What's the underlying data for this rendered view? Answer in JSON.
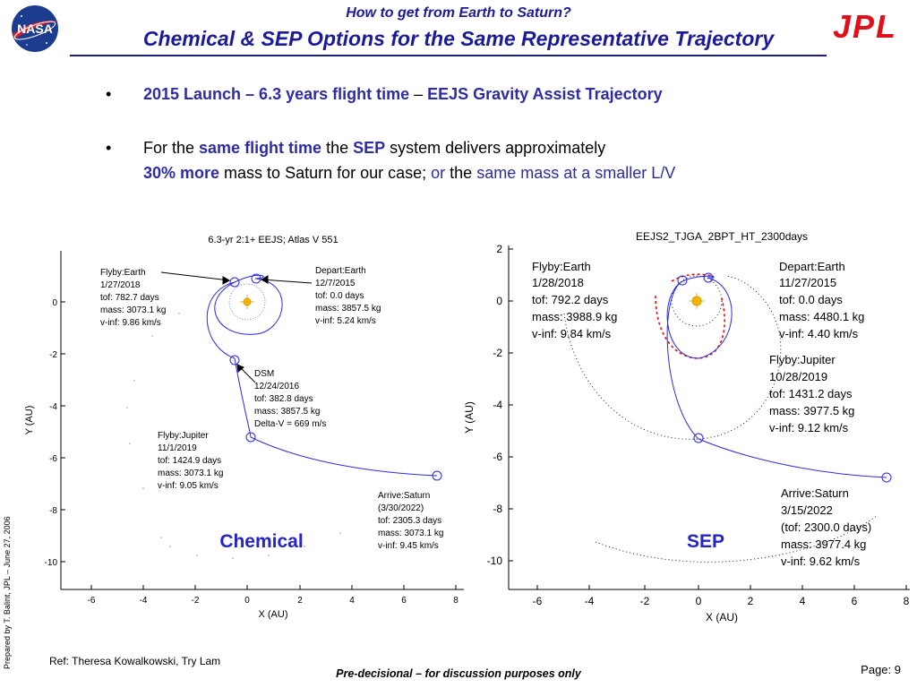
{
  "header": {
    "title_line1": "How to get from Earth to Saturn?",
    "title_line2": "Chemical & SEP Options for the Same Representative Trajectory",
    "nasa_logo_text": "NASA",
    "jpl_logo_text": "JPL"
  },
  "bullets": {
    "b1": {
      "part1": "2015 Launch – 6.3 years flight time",
      "part2": " – ",
      "part3": "EEJS Gravity Assist Trajectory"
    },
    "b2": {
      "part1": "For the ",
      "part2": "same flight time",
      "part3": " the ",
      "part4": "SEP",
      "part5": " system delivers approximately",
      "line2_part1": "30% more",
      "line2_part2": " mass to Saturn for our case; ",
      "line2_part3": "or",
      "line2_part4": " the ",
      "line2_part5": "same mass at a smaller L/V"
    }
  },
  "plot_left": {
    "title": "6.3-yr 2:1+ EEJS; Atlas V 551",
    "xlabel": "X (AU)",
    "ylabel": "Y (AU)",
    "xticks": [
      "-6",
      "-4",
      "-2",
      "0",
      "2",
      "4",
      "6",
      "8"
    ],
    "yticks": [
      "0",
      "-2",
      "-4",
      "-6",
      "-8",
      "-10"
    ],
    "label": "Chemical",
    "annotations": {
      "flyby_earth": [
        "Flyby:Earth",
        "1/27/2018",
        "tof: 782.7 days",
        "mass: 3073.1 kg",
        "v-inf: 9.86 km/s"
      ],
      "depart_earth": [
        "Depart:Earth",
        "12/7/2015",
        "tof: 0.0 days",
        "mass: 3857.5 kg",
        "v-inf: 5.24 km/s"
      ],
      "dsm": [
        "DSM",
        "12/24/2016",
        "tof: 382.8 days",
        "mass: 3857.5 kg",
        "Delta-V = 669 m/s"
      ],
      "flyby_jupiter": [
        "Flyby:Jupiter",
        "11/1/2019",
        "tof: 1424.9 days",
        "mass: 3073.1 kg",
        "v-inf: 9.05 km/s"
      ],
      "arrive_saturn": [
        "Arrive:Saturn",
        "(3/30/2022)",
        "tof: 2305.3 days",
        "mass: 3073.1 kg",
        "v-inf: 9.45 km/s"
      ]
    }
  },
  "plot_right": {
    "title": "EEJS2_TJGA_2BPT_HT_2300days",
    "xlabel": "X (AU)",
    "ylabel": "Y (AU)",
    "xticks": [
      "-6",
      "-4",
      "-2",
      "0",
      "2",
      "4",
      "6",
      "8"
    ],
    "yticks": [
      "2",
      "0",
      "-2",
      "-4",
      "-6",
      "-8",
      "-10"
    ],
    "label": "SEP",
    "annotations": {
      "flyby_earth": [
        "Flyby:Earth",
        "1/28/2018",
        "tof: 792.2 days",
        "mass: 3988.9 kg",
        "v-inf: 9.84 km/s"
      ],
      "depart_earth": [
        "Depart:Earth",
        "11/27/2015",
        "tof: 0.0 days",
        "mass: 4480.1 kg",
        "v-inf: 4.40 km/s"
      ],
      "flyby_jupiter": [
        "Flyby:Jupiter",
        "10/28/2019",
        "tof: 1431.2 days",
        "mass: 3977.5 kg",
        "v-inf: 9.12 km/s"
      ],
      "arrive_saturn": [
        "Arrive:Saturn",
        "3/15/2022",
        "(tof: 2300.0 days)",
        "mass: 3977.4 kg",
        "v-inf: 9.62 km/s"
      ]
    }
  },
  "footer": {
    "side_text": "Prepared by T. Balint, JPL – June 27, 2006",
    "ref": "Ref: Theresa Kowalkowski, Try Lam",
    "notice": "Pre-decisional – for discussion purposes only",
    "page": "Page: 9"
  },
  "colors": {
    "title_blue": "#1b1b9a",
    "orbit_blue": "#2a2ae6",
    "jpl_red": "#e0101a",
    "nasa_blue": "#1b3c8f"
  }
}
